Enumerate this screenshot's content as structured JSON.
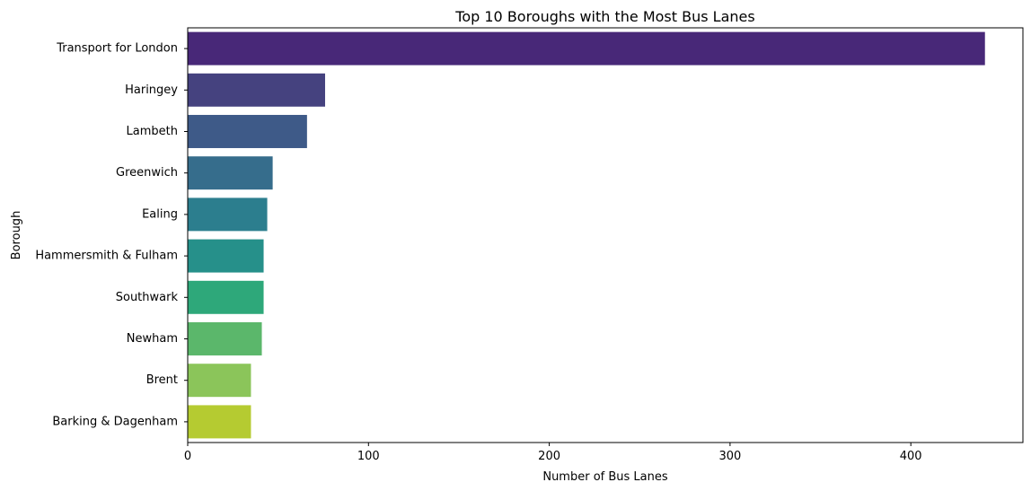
{
  "chart_data": {
    "type": "bar",
    "orientation": "horizontal",
    "title": "Top 10 Boroughs with the Most Bus Lanes",
    "xlabel": "Number of Bus Lanes",
    "ylabel": "Borough",
    "categories": [
      "Transport for London",
      "Haringey",
      "Lambeth",
      "Greenwich",
      "Ealing",
      "Hammersmith & Fulham",
      "Southwark",
      "Newham",
      "Brent",
      "Barking & Dagenham"
    ],
    "values": [
      441,
      76,
      66,
      47,
      44,
      42,
      42,
      41,
      35,
      35
    ],
    "colors": [
      "#482878",
      "#45427f",
      "#3e5a88",
      "#366d8c",
      "#2c7e8e",
      "#26908a",
      "#2ea87a",
      "#5bb76b",
      "#8bc55a",
      "#b5cb31"
    ],
    "xlim": [
      0,
      462
    ],
    "xticks": [
      0,
      100,
      200,
      300,
      400
    ],
    "grid": false,
    "legend": "none"
  }
}
